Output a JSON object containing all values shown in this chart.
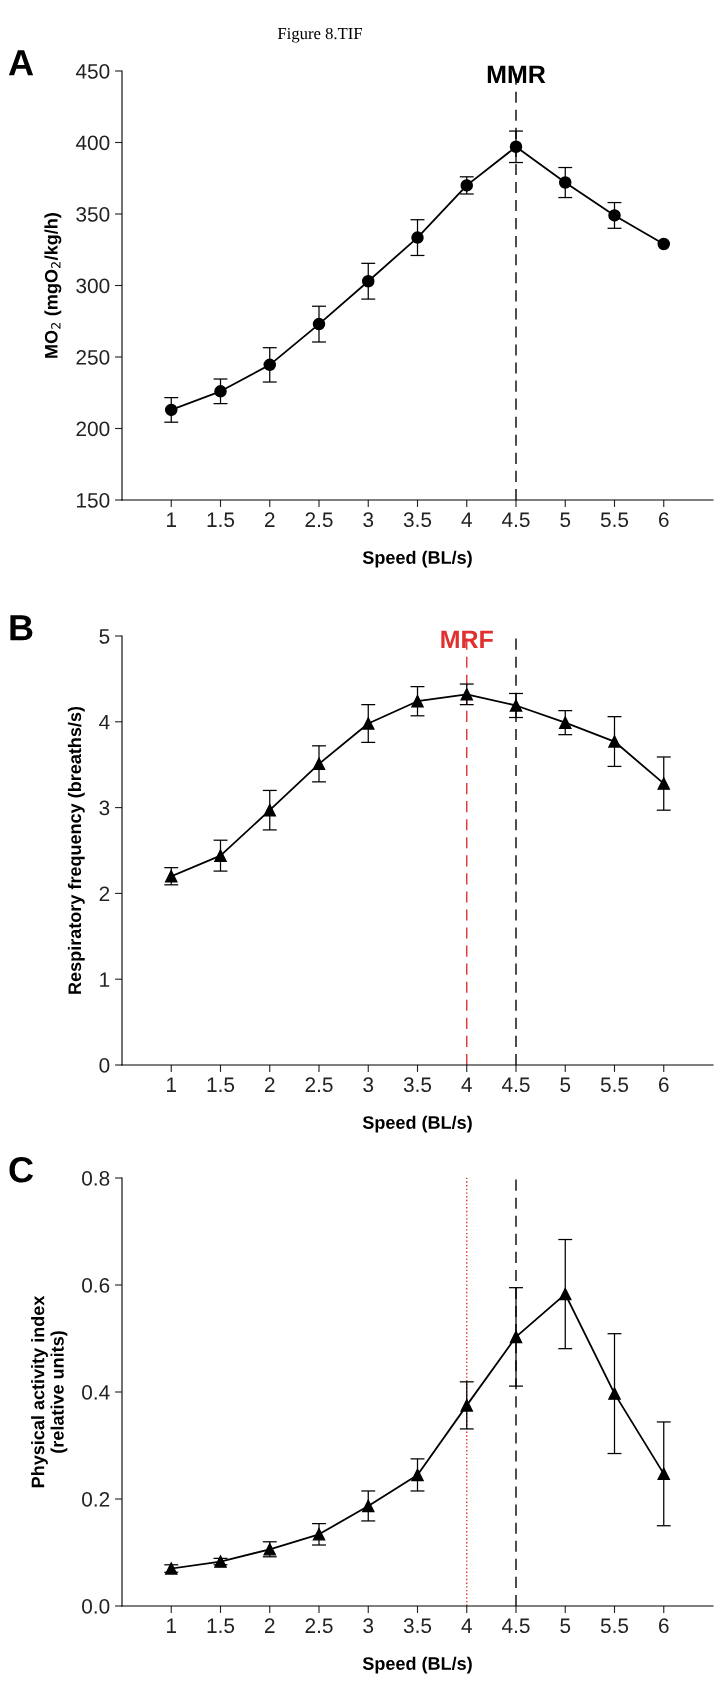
{
  "chart_data": [
    {
      "type": "line",
      "xlabel": "Speed (BL/s)",
      "ylabel": "MO$_{2}$ (mgO$_{2}$/kg/h)",
      "annotations": [
        "A",
        "Figure 8.TIF"
      ],
      "x": [
        1,
        1.5,
        2,
        2.5,
        3,
        3.5,
        4,
        4.5,
        5,
        5.5,
        6
      ],
      "series": [
        {
          "color": "#000000",
          "values": [
            213,
            226,
            244.5,
            273,
            303,
            333.5,
            370,
            397,
            372,
            349,
            329
          ],
          "errors": [
            8.6,
            8.6,
            12,
            12.5,
            12.5,
            12.5,
            6,
            11,
            10.5,
            9,
            null
          ]
        }
      ],
      "marker": "circle",
      "line_style": "solid",
      "xlim": [
        0.5,
        6.5
      ],
      "xticks": [
        1,
        1.5,
        2,
        2.5,
        3,
        3.5,
        4,
        4.5,
        5,
        5.5,
        6
      ],
      "ylim": [
        150,
        450
      ],
      "yticks": [
        150,
        200,
        250,
        300,
        350,
        400,
        450
      ],
      "ref_lines": [
        {
          "axis": "x",
          "value": 4.5,
          "label": "MMR",
          "color": "#000000",
          "line_style": "dashed"
        }
      ]
    },
    {
      "type": "line",
      "xlabel": "Speed (BL/s)",
      "ylabel": "Respiratory frequency (breaths/s)",
      "annotations": [
        "B"
      ],
      "x": [
        1,
        1.5,
        2,
        2.5,
        3,
        3.5,
        4,
        4.5,
        5,
        5.5,
        6
      ],
      "series": [
        {
          "color": "#000000",
          "values": [
            2.2,
            2.44,
            2.97,
            3.51,
            3.98,
            4.24,
            4.32,
            4.19,
            3.99,
            3.77,
            3.28
          ],
          "errors": [
            0.1,
            0.18,
            0.23,
            0.21,
            0.22,
            0.17,
            0.12,
            0.14,
            0.14,
            0.29,
            0.31
          ]
        }
      ],
      "marker": "triangle",
      "line_style": "solid",
      "xlim": [
        0.5,
        6.5
      ],
      "xticks": [
        1,
        1.5,
        2,
        2.5,
        3,
        3.5,
        4,
        4.5,
        5,
        5.5,
        6
      ],
      "ylim": [
        0,
        5
      ],
      "yticks": [
        0,
        1,
        2,
        3,
        4,
        5
      ],
      "ref_lines": [
        {
          "axis": "x",
          "value": 4,
          "label": "MRF",
          "color": "#e03030",
          "line_style": "dashed"
        },
        {
          "axis": "x",
          "value": 4.5,
          "color": "#000000",
          "line_style": "dashed"
        }
      ]
    },
    {
      "type": "line",
      "xlabel": "Speed (BL/s)",
      "ylabel": "Physical activity index\n(relative units)",
      "annotations": [
        "C"
      ],
      "x": [
        1,
        1.5,
        2,
        2.5,
        3,
        3.5,
        4,
        4.5,
        5,
        5.5,
        6
      ],
      "series": [
        {
          "color": "#000000",
          "values": [
            0.07,
            0.083,
            0.106,
            0.134,
            0.187,
            0.245,
            0.375,
            0.503,
            0.583,
            0.397,
            0.247
          ],
          "errors": [
            0.007,
            0.006,
            0.014,
            0.02,
            0.028,
            0.03,
            0.044,
            0.092,
            0.102,
            0.112,
            0.097
          ]
        }
      ],
      "marker": "triangle",
      "line_style": "solid",
      "xlim": [
        0.5,
        6.5
      ],
      "xticks": [
        1,
        1.5,
        2,
        2.5,
        3,
        3.5,
        4,
        4.5,
        5,
        5.5,
        6
      ],
      "ylim": [
        0,
        0.8
      ],
      "yticks": [
        {
          "value": 0,
          "label": "0.0"
        },
        {
          "value": 0.2,
          "label": "0.2"
        },
        {
          "value": 0.4,
          "label": "0.4"
        },
        {
          "value": 0.6,
          "label": "0.6"
        },
        {
          "value": 0.8,
          "label": "0.8"
        }
      ],
      "ref_lines": [
        {
          "axis": "x",
          "value": 4,
          "color": "#e03030",
          "line_style": "dotted"
        },
        {
          "axis": "x",
          "value": 4.5,
          "color": "#000000",
          "line_style": "dashed"
        }
      ]
    }
  ]
}
